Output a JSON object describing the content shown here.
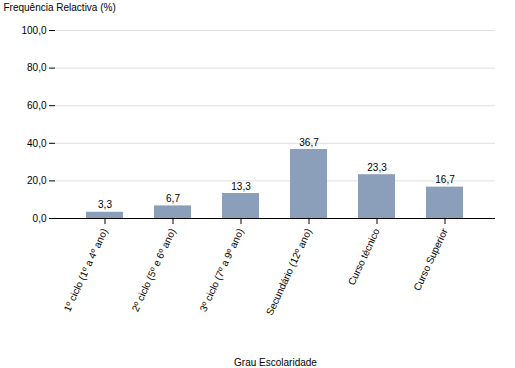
{
  "chart_data": {
    "type": "bar",
    "xlabel": "Grau Escolaridade",
    "ylabel": "Frequência Relactiva (%)",
    "categories": [
      "1º ciclo (1º a 4º ano)",
      "2º ciclo (5º e 6º ano)",
      "3º ciclo (7º a 9º ano)",
      "Secundário (12º ano)",
      "Curso técnico",
      "Curso Superior"
    ],
    "values": [
      3.3,
      6.7,
      13.3,
      36.7,
      23.3,
      16.7
    ],
    "value_labels": [
      "3,3",
      "6,7",
      "13,3",
      "36,7",
      "23,3",
      "16,7"
    ],
    "color": "#8c9fba",
    "ylim": [
      0,
      100
    ],
    "yticks": [
      {
        "value": 0,
        "label": "0,0"
      },
      {
        "value": 20,
        "label": "20,0"
      },
      {
        "value": 40,
        "label": "40,0"
      },
      {
        "value": 60,
        "label": "60,0"
      },
      {
        "value": 80,
        "label": "80,0"
      },
      {
        "value": 100,
        "label": "100,0"
      }
    ],
    "grid": true,
    "data_labels": true
  }
}
